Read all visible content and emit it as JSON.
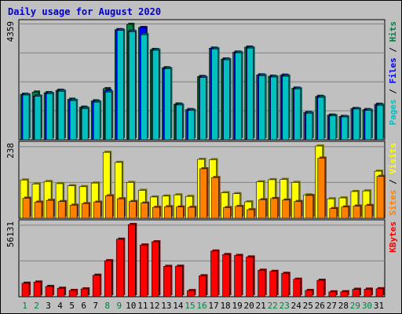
{
  "chart_data": {
    "title": "Daily usage for August 2020",
    "type": "bar",
    "categories": [
      "1",
      "2",
      "3",
      "4",
      "5",
      "6",
      "7",
      "8",
      "9",
      "10",
      "11",
      "12",
      "13",
      "14",
      "15",
      "16",
      "17",
      "18",
      "19",
      "20",
      "21",
      "22",
      "23",
      "24",
      "25",
      "26",
      "27",
      "28",
      "29",
      "30",
      "31"
    ],
    "weekend_days": [
      "1",
      "2",
      "8",
      "9",
      "15",
      "16",
      "22",
      "23",
      "29",
      "30"
    ],
    "panels": [
      {
        "id": "top",
        "max_label": "4359",
        "ymax": 4359,
        "right_labels": [
          {
            "text": "Pages",
            "color": "#00c0c0"
          },
          {
            "text": " / ",
            "color": "#000000"
          },
          {
            "text": "Files",
            "color": "#0000ff"
          },
          {
            "text": " / ",
            "color": "#000000"
          },
          {
            "text": "Hits",
            "color": "#008040"
          }
        ],
        "series": [
          {
            "name": "Hits",
            "color": "#008040",
            "values": [
              1720,
              1800,
              1780,
              1870,
              1530,
              1230,
              1470,
              1930,
              4160,
              4359,
              4240,
              3410,
              2720,
              1350,
              1140,
              2390,
              3460,
              3050,
              3310,
              3500,
              2450,
              2400,
              2440,
              1950,
              1030,
              1640,
              930,
              880,
              1180,
              1140,
              1340
            ]
          },
          {
            "name": "Files",
            "color": "#0000ff",
            "values": [
              1700,
              1650,
              1760,
              1850,
              1490,
              1200,
              1440,
              1850,
              4150,
              4100,
              4230,
              3400,
              2700,
              1330,
              1120,
              2370,
              3450,
              3040,
              3300,
              3480,
              2440,
              2380,
              2420,
              1940,
              1010,
              1620,
              920,
              870,
              1170,
              1120,
              1320
            ]
          },
          {
            "name": "Pages",
            "color": "#00c0c0",
            "values": [
              1690,
              1640,
              1740,
              1830,
              1480,
              1180,
              1420,
              1800,
              4130,
              4080,
              3970,
              3380,
              2680,
              1310,
              1110,
              2350,
              3430,
              3020,
              3280,
              3460,
              2420,
              2370,
              2400,
              1920,
              1000,
              1600,
              900,
              860,
              1160,
              1110,
              1300
            ]
          }
        ]
      },
      {
        "id": "mid",
        "max_label": "238",
        "ymax": 238,
        "right_labels": [
          {
            "text": "Sites",
            "color": "#ff8000"
          },
          {
            "text": " / ",
            "color": "#000000"
          },
          {
            "text": "Visits",
            "color": "#ffff00"
          }
        ],
        "series": [
          {
            "name": "Visits",
            "color": "#ffff00",
            "values": [
              126,
              113,
              121,
              114,
              107,
              104,
              116,
              217,
              184,
              118,
              92,
              70,
              73,
              77,
              72,
              194,
              193,
              84,
              81,
              54,
              120,
              127,
              128,
              118,
              77,
              238,
              64,
              67,
              88,
              90,
              155
            ]
          },
          {
            "name": "Sites",
            "color": "#ff8000",
            "values": [
              66,
              53,
              59,
              55,
              43,
              48,
              53,
              74,
              64,
              55,
              50,
              36,
              38,
              37,
              36,
              163,
              134,
              35,
              39,
              28,
              61,
              65,
              60,
              55,
              75,
              198,
              32,
              37,
              40,
              42,
              138
            ]
          }
        ]
      },
      {
        "id": "bot",
        "max_label": "56131",
        "ymax": 56131,
        "right_labels": [
          {
            "text": "KBytes",
            "color": "#ff0000"
          }
        ],
        "series": [
          {
            "name": "KBytes",
            "color": "#ff0000",
            "values": [
              10500,
              11400,
              8000,
              6600,
              4900,
              6100,
              16700,
              28000,
              44700,
              56131,
              40200,
              42700,
              23600,
              23700,
              4800,
              16300,
              35500,
              32800,
              32100,
              30900,
              20600,
              19700,
              18200,
              13600,
              4900,
              12800,
              3800,
              3900,
              5800,
              5900,
              6200
            ]
          }
        ]
      }
    ]
  }
}
